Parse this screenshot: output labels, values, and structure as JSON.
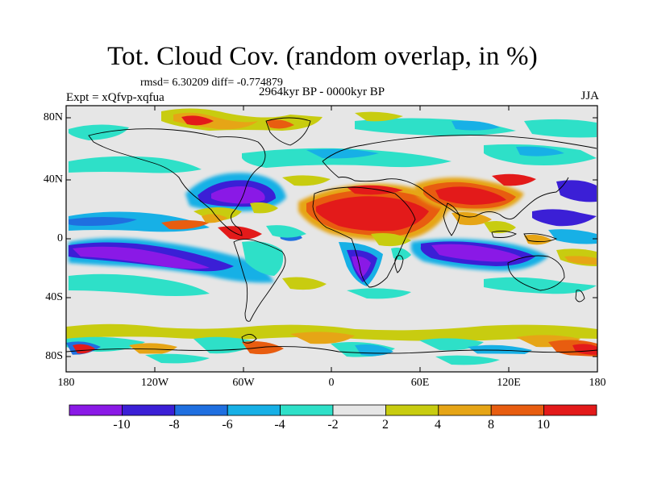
{
  "title": "Tot. Cloud Cov. (random overlap, in %)",
  "stats": "rmsd= 6.30209 diff= -0.774879",
  "experiment": "Expt = xQfvp-xqfua",
  "period": "2964kyr BP - 0000kyr BP",
  "season": "JJA",
  "lat_labels": [
    "80N",
    "40N",
    "0",
    "40S",
    "80S"
  ],
  "lon_labels": [
    "180",
    "120W",
    "60W",
    "0",
    "60E",
    "120E",
    "180"
  ],
  "colorbar": {
    "labels": [
      "-10",
      "-8",
      "-6",
      "-4",
      "-2",
      "2",
      "4",
      "8",
      "10"
    ],
    "colors": [
      "#8a19e6",
      "#3b1fd6",
      "#1f6fe0",
      "#17b0e6",
      "#2ee0c8",
      "#e6e6e6",
      "#c8cc10",
      "#e6a516",
      "#e85d10",
      "#e31a1a"
    ]
  },
  "icons": {
    "map": "world-map-icon"
  }
}
